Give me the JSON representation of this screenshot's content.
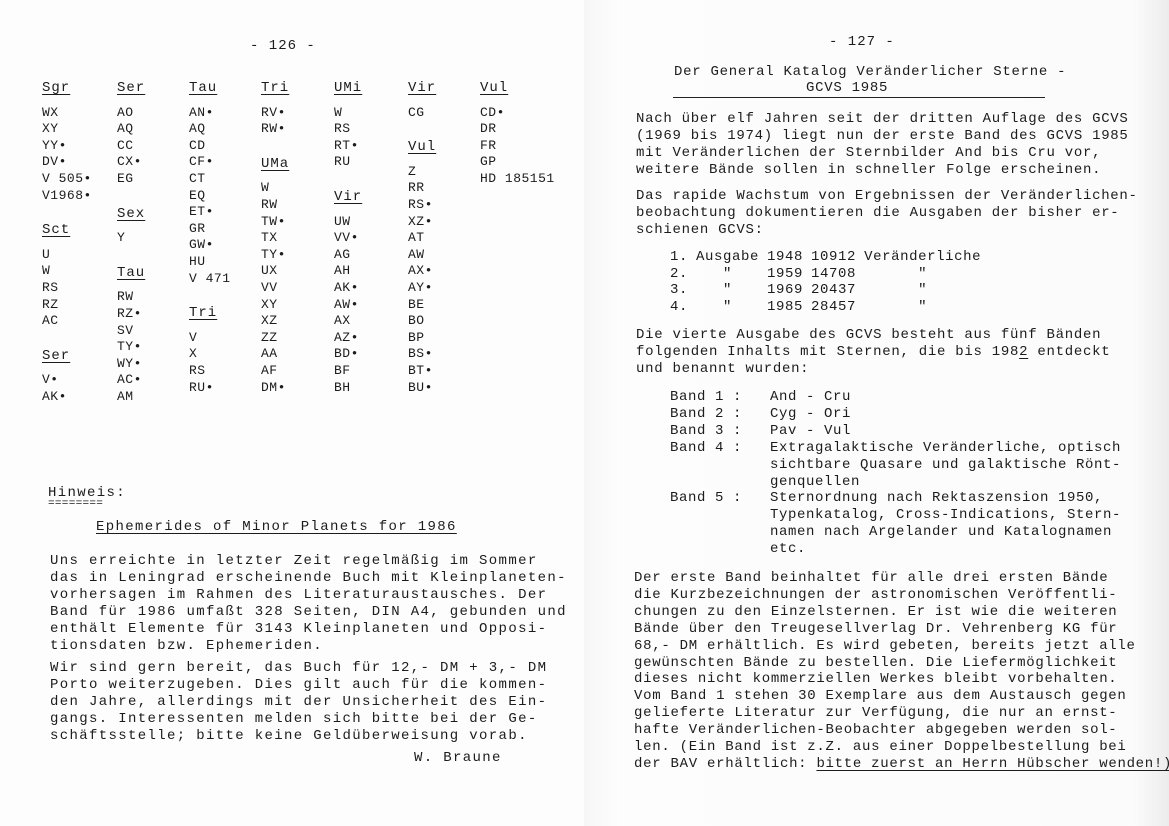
{
  "left_page": {
    "page_number": "- 126 -",
    "columns": [
      [
        {
          "header": "Sgr",
          "items": [
            "WX",
            "XY",
            "YY•",
            "DV•",
            "V 505•",
            "V1968•"
          ]
        },
        {
          "header": "Sct",
          "items": [
            "U",
            "W",
            "RS",
            "RZ",
            "AC"
          ]
        },
        {
          "header": "Ser",
          "items": [
            "V•",
            "AK•"
          ]
        }
      ],
      [
        {
          "header": "Ser",
          "items": [
            "AO",
            "AQ",
            "CC",
            "CX•",
            "EG"
          ]
        },
        {
          "header": "Sex",
          "items": [
            "Y"
          ]
        },
        {
          "header": "Tau",
          "items": [
            "RW",
            "RZ•",
            "SV",
            "TY•",
            "WY•",
            "AC•",
            "AM"
          ]
        }
      ],
      [
        {
          "header": "Tau",
          "items": [
            "AN•",
            "AQ",
            "CD",
            "CF•",
            "CT",
            "EQ",
            "ET•",
            "GR",
            "GW•",
            "HU",
            "V 471"
          ]
        },
        {
          "header": "Tri",
          "items": [
            "V",
            "X",
            "RS",
            "RU•"
          ]
        }
      ],
      [
        {
          "header": "Tri",
          "items": [
            "RV•",
            "RW•"
          ]
        },
        {
          "header": "UMa",
          "items": [
            "W",
            "RW",
            "TW•",
            "TX",
            "TY•",
            "UX",
            "VV",
            "XY",
            "XZ",
            "ZZ",
            "AA",
            "AF",
            "DM•"
          ]
        }
      ],
      [
        {
          "header": "UMi",
          "items": [
            "W",
            "RS",
            "RT•",
            "RU"
          ]
        },
        {
          "header": "Vir",
          "items": [
            "UW",
            "VV•",
            "AG",
            "AH",
            "AK•",
            "AW•",
            "AX",
            "AZ•",
            "BD•",
            "BF",
            "BH"
          ]
        }
      ],
      [
        {
          "header": "Vir",
          "items": [
            "CG"
          ]
        },
        {
          "header": "Vul",
          "items": [
            "Z",
            "RR",
            "RS•",
            "XZ•",
            "AT",
            "AW",
            "AX•",
            "AY•",
            "BE",
            "BO",
            "BP",
            "BS•",
            "BT•",
            "BU•"
          ]
        }
      ],
      [
        {
          "header": "Vul",
          "items": [
            "CD•",
            "DR",
            "FR",
            "GP",
            "HD 185151"
          ]
        }
      ]
    ],
    "note_label": "Hinweis:",
    "note_underline": "========",
    "article_title": "Ephemerides of Minor Planets for 1986",
    "paragraphs": [
      "Uns erreichte in letzter Zeit regelmäßig im Sommer\ndas in Leningrad erscheinende Buch mit Kleinplaneten-\nvorhersagen im Rahmen des Literaturaustausches. Der\nBand für 1986 umfaßt 328 Seiten, DIN A4, gebunden und\nenthält Elemente für 3143 Kleinplaneten und Opposi-\ntionsdaten bzw. Ephemeriden.",
      "Wir sind gern bereit, das Buch für 12,- DM + 3,- DM\nPorto weiterzugeben. Dies gilt auch für die kommen-\nden Jahre, allerdings mit der Unsicherheit des Ein-\ngangs. Interessenten melden sich bitte bei der Ge-\nschäftsstelle; bitte keine Geldüberweisung vorab."
    ],
    "signature": "W. Braune"
  },
  "right_page": {
    "page_number": "- 127 -",
    "title_line1": "Der General Katalog Veränderlicher Sterne -",
    "title_line2": "GCVS 1985",
    "paragraph1": "Nach über elf Jahren seit der dritten Auflage des GCVS\n(1969 bis 1974) liegt nun der erste Band des GCVS 1985\nmit Veränderlichen der Sternbilder And bis Cru vor,\nweitere Bände sollen in schneller Folge erscheinen.",
    "paragraph2": "Das rapide Wachstum von Ergebnissen der Veränderlichen-\nbeobachtung dokumentieren die Ausgaben der bisher er-\nschienen GCVS:",
    "editions": [
      {
        "no": "1.",
        "label": "Ausgabe",
        "year": "1948",
        "count": "10912",
        "unit": "Veränderliche"
      },
      {
        "no": "2.",
        "label": "\"",
        "year": "1959",
        "count": "14708",
        "unit": "\""
      },
      {
        "no": "3.",
        "label": "\"",
        "year": "1969",
        "count": "20437",
        "unit": "\""
      },
      {
        "no": "4.",
        "label": "\"",
        "year": "1985",
        "count": "28457",
        "unit": "\""
      }
    ],
    "paragraph3_a": "Die vierte Ausgabe des GCVS besteht aus fünf Bänden\nfolgenden Inhalts mit Sternen, die bis 198",
    "paragraph3_underlined_digit": "2",
    "paragraph3_b": " entdeckt\nund benannt wurden:",
    "bands": [
      {
        "label": "Band 1 :",
        "content": "And - Cru"
      },
      {
        "label": "Band 2 :",
        "content": "Cyg - Ori"
      },
      {
        "label": "Band 3 :",
        "content": "Pav - Vul"
      },
      {
        "label": "Band 4 :",
        "content": "Extragalaktische Veränderliche, optisch\nsichtbare Quasare und galaktische Rönt-\ngenquellen"
      },
      {
        "label": "Band 5 :",
        "content": "Sternordnung nach Rektaszension 1950,\nTypenkatalog, Cross-Indications, Stern-\nnamen nach Argelander und Katalognamen\netc."
      }
    ],
    "paragraph4": "Der erste Band beinhaltet für alle drei ersten Bände\ndie Kurzbezeichnungen der astronomischen Veröffentli-\nchungen zu den Einzelsternen. Er ist wie die weiteren\nBände über den Treugesellverlag Dr. Vehrenberg KG für\n68,- DM erhältlich. Es wird gebeten, bereits jetzt alle\ngewünschten Bände zu bestellen. Die Liefermöglichkeit\ndieses nicht kommerziellen Werkes bleibt vorbehalten.\nVom Band 1 stehen 30 Exemplare aus dem Austausch gegen\ngelieferte Literatur zur Verfügung, die nur an ernst-\nhafte Veränderlichen-Beobachter abgegeben werden sol-\nlen. (Ein Band ist z.Z. aus einer Doppelbestellung bei\nder BAV erhältlich: ",
    "paragraph4_underlined": "bitte zuerst an Herrn Hübscher wenden!)"
  }
}
